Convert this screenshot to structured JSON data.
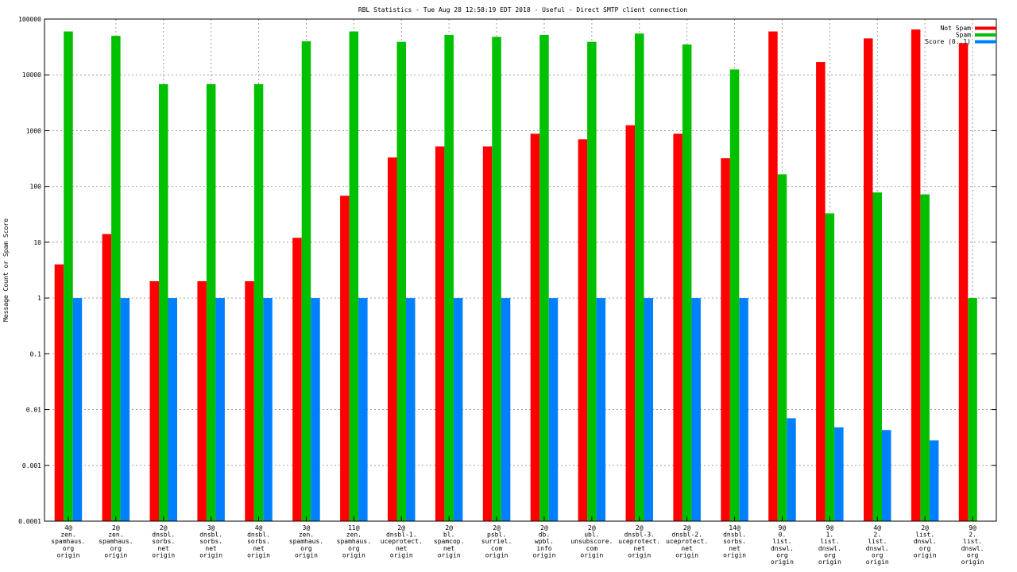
{
  "chart_data": {
    "type": "bar",
    "title": "RBL Statistics - Tue Aug 28 12:58:19 EDT 2018 - Useful - Direct SMTP client connection",
    "ylabel": "Message Count or Spam Score",
    "xlabel": "",
    "yscale": "log",
    "ylim": [
      0.0001,
      100000
    ],
    "y_ticks": [
      "0.0001",
      "0.001",
      "0.01",
      "0.1",
      "1",
      "10",
      "100",
      "1000",
      "10000",
      "100000"
    ],
    "grid": true,
    "legend_position": "top-right",
    "categories": [
      [
        "4@",
        "zen.",
        "spamhaus.",
        "org",
        "origin"
      ],
      [
        "2@",
        "zen.",
        "spamhaus.",
        "org",
        "origin"
      ],
      [
        "2@",
        "dnsbl.",
        "sorbs.",
        "net",
        "origin"
      ],
      [
        "3@",
        "dnsbl.",
        "sorbs.",
        "net",
        "origin"
      ],
      [
        "4@",
        "dnsbl.",
        "sorbs.",
        "net",
        "origin"
      ],
      [
        "3@",
        "zen.",
        "spamhaus.",
        "org",
        "origin"
      ],
      [
        "11@",
        "zen.",
        "spamhaus.",
        "org",
        "origin"
      ],
      [
        "2@",
        "dnsbl-1.",
        "uceprotect.",
        "net",
        "origin"
      ],
      [
        "2@",
        "bl.",
        "spamcop.",
        "net",
        "origin"
      ],
      [
        "2@",
        "psbl.",
        "surriel.",
        "com",
        "origin"
      ],
      [
        "2@",
        "db.",
        "wpbl.",
        "info",
        "origin"
      ],
      [
        "2@",
        "ubl.",
        "unsubscore.",
        "com",
        "origin"
      ],
      [
        "2@",
        "dnsbl-3.",
        "uceprotect.",
        "net",
        "origin"
      ],
      [
        "2@",
        "dnsbl-2.",
        "uceprotect.",
        "net",
        "origin"
      ],
      [
        "14@",
        "dnsbl.",
        "sorbs.",
        "net",
        "origin"
      ],
      [
        "9@",
        "0.",
        "list.",
        "dnswl.",
        "org",
        "origin"
      ],
      [
        "9@",
        "1.",
        "list.",
        "dnswl.",
        "org",
        "origin"
      ],
      [
        "4@",
        "2.",
        "list.",
        "dnswl.",
        "org",
        "origin"
      ],
      [
        "2@",
        "list.",
        "dnswl.",
        "org",
        "origin"
      ],
      [
        "9@",
        "2.",
        "list.",
        "dnswl.",
        "org",
        "origin"
      ]
    ],
    "series": [
      {
        "name": "Not Spam",
        "color": "#ff0000",
        "values": [
          4,
          14,
          2,
          2,
          2,
          12,
          68,
          330,
          520,
          520,
          880,
          700,
          1250,
          880,
          320,
          60000,
          17000,
          45000,
          65000,
          37000
        ]
      },
      {
        "name": "Spam",
        "color": "#00c000",
        "values": [
          60000,
          50000,
          6800,
          6800,
          6800,
          40000,
          60000,
          39000,
          52000,
          48000,
          52000,
          39000,
          55000,
          35000,
          12500,
          165,
          33,
          78,
          72,
          1
        ]
      },
      {
        "name": "Score (0..1)",
        "color": "#0080ff",
        "values": [
          1,
          1,
          1,
          1,
          1,
          1,
          1,
          1,
          1,
          1,
          1,
          1,
          1,
          1,
          1,
          0.007,
          0.0048,
          0.0043,
          0.0028,
          null
        ]
      }
    ]
  }
}
